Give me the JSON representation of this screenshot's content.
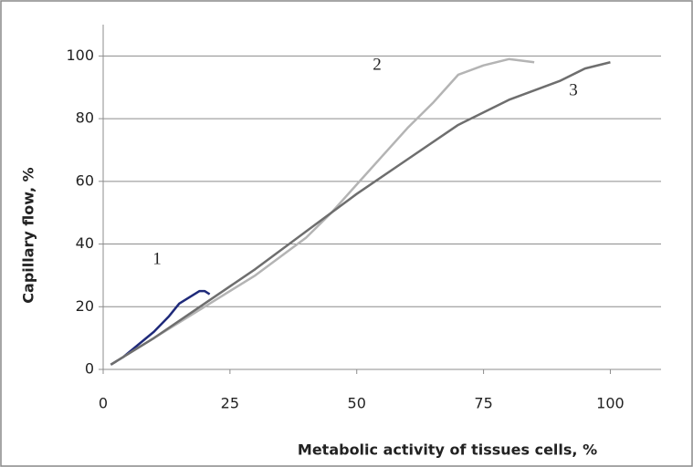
{
  "chart_data": {
    "type": "line",
    "x_label": "Metabolic activity of tissues cells, %",
    "y_label": "Capillary flow, %",
    "xlim": [
      0,
      110
    ],
    "ylim": [
      0,
      110
    ],
    "xticks": [
      0,
      25,
      50,
      75,
      100
    ],
    "yticks": [
      0,
      20,
      40,
      60,
      80,
      100
    ],
    "grid": true,
    "series": [
      {
        "name": "1",
        "color": "#1f2a7a",
        "x": [
          1.5,
          4,
          7,
          10,
          13,
          15,
          17,
          19,
          20,
          21
        ],
        "values": [
          1.5,
          4,
          8,
          12,
          17,
          21,
          23,
          25,
          25,
          24
        ]
      },
      {
        "name": "2",
        "color": "#b4b4b4",
        "x": [
          1.5,
          5,
          10,
          20,
          30,
          40,
          45,
          50,
          55,
          60,
          65,
          70,
          75,
          80,
          85
        ],
        "values": [
          1.5,
          5,
          10,
          20,
          30,
          42,
          50,
          59,
          68,
          77,
          85,
          94,
          97,
          99,
          98
        ]
      },
      {
        "name": "3",
        "color": "#6e6e6e",
        "x": [
          1.5,
          10,
          20,
          30,
          40,
          50,
          60,
          70,
          80,
          90,
          95,
          100
        ],
        "values": [
          1.5,
          10,
          21,
          32,
          44,
          56,
          67,
          78,
          86,
          92,
          96,
          98
        ]
      }
    ]
  }
}
